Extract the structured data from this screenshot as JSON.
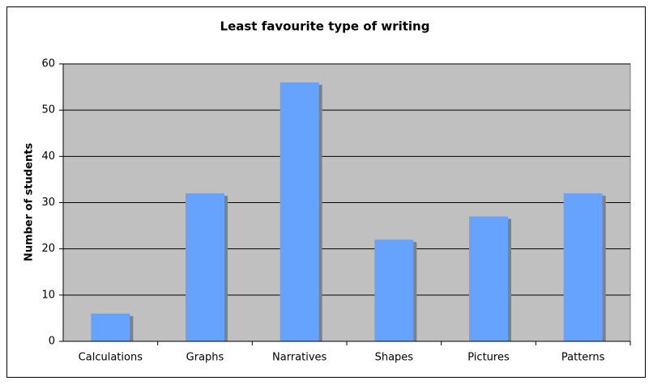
{
  "chart_data": {
    "type": "bar",
    "title": "Least favourite type of writing",
    "y_label": "Number of students",
    "categories": [
      "Calculations",
      "Graphs",
      "Narratives",
      "Shapes",
      "Pictures",
      "Patterns"
    ],
    "values": [
      6,
      32,
      56,
      22,
      27,
      32
    ],
    "color": "#66a3ff",
    "ylim": [
      0,
      60
    ],
    "yticks": [
      0,
      10,
      20,
      30,
      40,
      50,
      60
    ],
    "grid": true
  }
}
